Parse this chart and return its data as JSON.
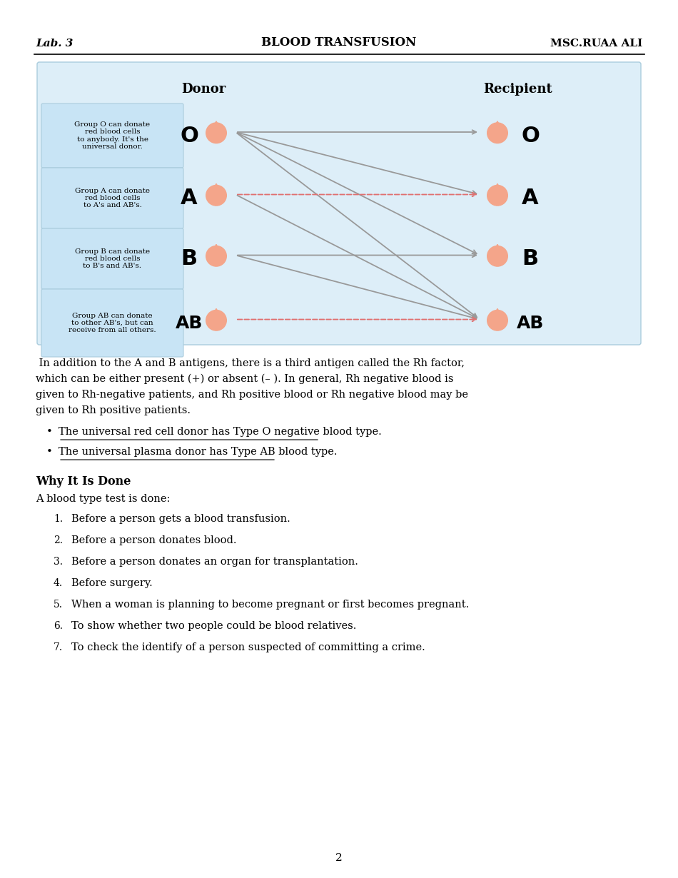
{
  "header_left": "Lab. 3",
  "header_center": "BLOOD TRANSFUSION",
  "header_right": "MSC.RUAA ALI",
  "donor_label": "Donor",
  "recipient_label": "Recipient",
  "blood_groups": [
    "O",
    "A",
    "B",
    "AB"
  ],
  "group_descriptions": [
    "Group O can donate\nred blood cells\nto anybody. It's the\nuniversal donor.",
    "Group A can donate\nred blood cells\nto A's and AB's.",
    "Group B can donate\nred blood cells\nto B's and AB's.",
    "Group AB can donate\nto other AB's, but can\nreceive from all others."
  ],
  "bg_outer": "#ddeef8",
  "bg_inner": "#c8e4f5",
  "drop_color": "#f4a58a",
  "arrow_gray": "#999999",
  "arrow_red": "#e87878",
  "paragraph_text": " In addition to the A and B antigens, there is a third antigen called the Rh factor,\nwhich can be either present (+) or absent (– ). In general, Rh negative blood is\ngiven to Rh-negative patients, and Rh positive blood or Rh negative blood may be\ngiven to Rh positive patients.",
  "bullet1": "The universal red cell donor has Type O negative blood type.",
  "bullet2": "The universal plasma donor has Type AB blood type.",
  "why_title": "Why It Is Done",
  "why_intro": "A blood type test is done:",
  "numbered_items": [
    "Before a person gets a blood transfusion.",
    "Before a person donates blood.",
    "Before a person donates an organ for transplantation.",
    "Before surgery.",
    "When a woman is planning to become pregnant or first becomes pregnant.",
    "To show whether two people could be blood relatives.",
    "To check the identify of a person suspected of committing a crime."
  ],
  "page_number": "2"
}
